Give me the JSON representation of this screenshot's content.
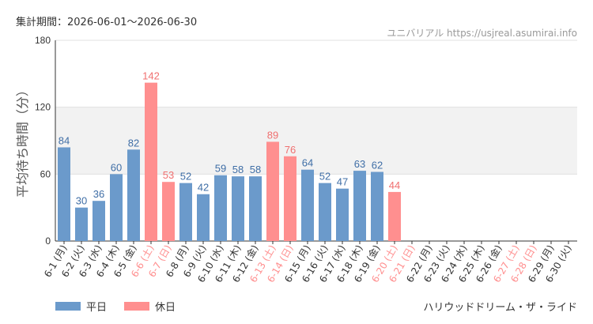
{
  "period_label": "集計期間：2026-06-01〜2026-06-30",
  "source_label": "ユニバリアル  https://usjreal.asumirai.info",
  "attraction_name": "ハリウッドドリーム・ザ・ライド",
  "legend": {
    "weekday": "平日",
    "holiday": "休日"
  },
  "colors": {
    "weekday": "#6b9acb",
    "holiday": "#ff8f8f",
    "weekday_text": "#3f6ea6",
    "holiday_text": "#f07070",
    "band": "#f2f2f2",
    "grid": "#e0e0e0"
  },
  "chart_data": {
    "type": "bar",
    "ylabel": "平均待ち時間（分）",
    "ylim": [
      0,
      180
    ],
    "yticks": [
      0,
      60,
      120,
      180
    ],
    "categories": [
      "6-1 (月)",
      "6-2 (火)",
      "6-3 (水)",
      "6-4 (木)",
      "6-5 (金)",
      "6-6 (土)",
      "6-7 (日)",
      "6-8 (月)",
      "6-9 (火)",
      "6-10 (水)",
      "6-11 (木)",
      "6-12 (金)",
      "6-13 (土)",
      "6-14 (日)",
      "6-15 (月)",
      "6-16 (火)",
      "6-17 (水)",
      "6-18 (木)",
      "6-19 (金)",
      "6-20 (土)",
      "6-21 (日)",
      "6-22 (月)",
      "6-23 (火)",
      "6-24 (水)",
      "6-25 (木)",
      "6-26 (金)",
      "6-27 (土)",
      "6-28 (日)",
      "6-29 (月)",
      "6-30 (火)"
    ],
    "holiday": [
      false,
      false,
      false,
      false,
      false,
      true,
      true,
      false,
      false,
      false,
      false,
      false,
      true,
      true,
      false,
      false,
      false,
      false,
      false,
      true,
      true,
      false,
      false,
      false,
      false,
      false,
      true,
      true,
      false,
      false
    ],
    "values": [
      84,
      30,
      36,
      60,
      82,
      142,
      53,
      52,
      42,
      59,
      58,
      58,
      89,
      76,
      64,
      52,
      47,
      63,
      62,
      44,
      null,
      null,
      null,
      null,
      null,
      null,
      null,
      null,
      null,
      null
    ]
  }
}
